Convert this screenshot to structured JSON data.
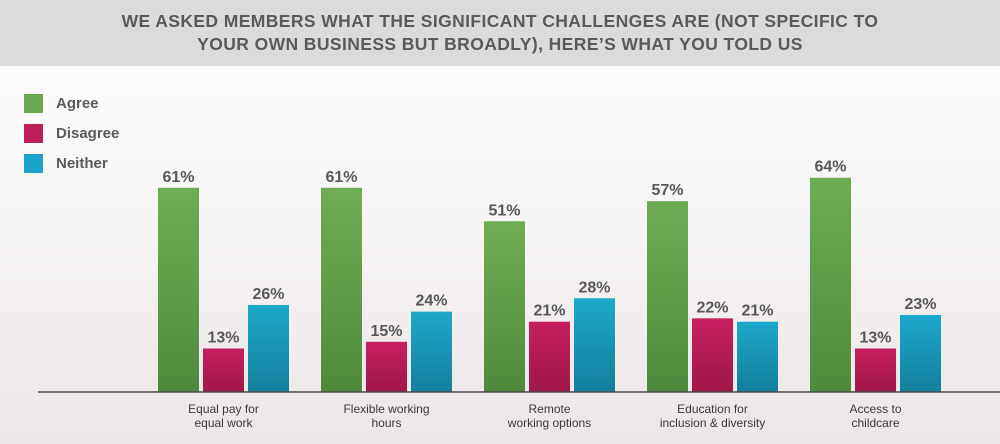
{
  "header": {
    "title": "WE ASKED MEMBERS WHAT THE SIGNIFICANT CHALLENGES ARE (NOT SPECIFIC TO\nYOUR OWN BUSINESS BUT BROADLY), HERE’S WHAT YOU TOLD US"
  },
  "colors": {
    "agree": "#6aa84f",
    "disagree": "#c01e5b",
    "neither": "#1aa3c8"
  },
  "chart_data": {
    "type": "bar",
    "title": "WE ASKED MEMBERS WHAT THE SIGNIFICANT CHALLENGES ARE (NOT SPECIFIC TO YOUR OWN BUSINESS BUT BROADLY), HERE’S WHAT YOU TOLD US",
    "categories": [
      [
        "Equal pay for",
        "equal work"
      ],
      [
        "Flexible working",
        "hours"
      ],
      [
        "Remote",
        "working options"
      ],
      [
        "Education for",
        "inclusion & diversity"
      ],
      [
        "Access to",
        "childcare"
      ]
    ],
    "series": [
      {
        "name": "Agree",
        "values": [
          61,
          61,
          51,
          57,
          64
        ],
        "labels": [
          "61%",
          "61%",
          "51%",
          "57%",
          "64%"
        ]
      },
      {
        "name": "Disagree",
        "values": [
          13,
          15,
          21,
          22,
          13
        ],
        "labels": [
          "13%",
          "15%",
          "21%",
          "22%",
          "13%"
        ]
      },
      {
        "name": "Neither",
        "values": [
          26,
          24,
          28,
          21,
          23
        ],
        "labels": [
          "26%",
          "24%",
          "28%",
          "21%",
          "23%"
        ]
      }
    ],
    "unit": "%",
    "ylim": [
      0,
      100
    ],
    "grid": false,
    "legend_position": "top-left"
  }
}
